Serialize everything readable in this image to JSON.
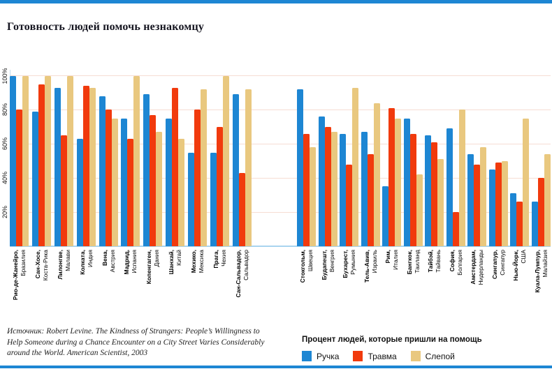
{
  "title": "Готовность людей помочь незнакомцу",
  "accent_color": "#1d86d3",
  "source": {
    "text": "Источник: Robert Levine. The Kindness of Strangers: People’s Willingness to\nHelp Someone during a Chance Encounter on a City Street Varies Considerably\naround the World. American Scientist, 2003"
  },
  "legend": {
    "title": "Процент людей, которые пришли на помощь",
    "items": [
      {
        "label": "Ручка",
        "color": "#1d86d3"
      },
      {
        "label": "Травма",
        "color": "#f13a0d"
      },
      {
        "label": "Слепой",
        "color": "#e9c87f"
      }
    ]
  },
  "chart_data": {
    "type": "bar",
    "title": "Готовность людей помочь незнакомцу",
    "ylabel": "Процент людей, которые пришли на помощь",
    "ylim": [
      0,
      105
    ],
    "yticks": [
      {
        "label": "20%",
        "value": 20
      },
      {
        "label": "40%",
        "value": 40
      },
      {
        "label": "60%",
        "value": 60
      },
      {
        "label": "80%",
        "value": 80
      },
      {
        "label": "100%",
        "value": 100
      }
    ],
    "grid": true,
    "legend_position": "bottom-right",
    "series_names": [
      "Ручка",
      "Травма",
      "Слепой"
    ],
    "clusters": [
      {
        "name": "left",
        "cities": [
          {
            "city": "Рио-де-Жанейро,",
            "country": "Бразилия",
            "values": [
              100,
              80,
              100
            ]
          },
          {
            "city": "Сан-Хосе,",
            "country": "Коста-Рика",
            "values": [
              79,
              95,
              100
            ]
          },
          {
            "city": "Лилонгве,",
            "country": "Малави",
            "values": [
              93,
              65,
              100
            ]
          },
          {
            "city": "Колката,",
            "country": "Индия",
            "values": [
              63,
              94,
              93
            ]
          },
          {
            "city": "Вена,",
            "country": "Австрия",
            "values": [
              88,
              80,
              75
            ]
          },
          {
            "city": "Мадрид,",
            "country": "Испания",
            "values": [
              75,
              63,
              100
            ]
          },
          {
            "city": "Копенгаген,",
            "country": "Дания",
            "values": [
              89,
              77,
              67
            ]
          },
          {
            "city": "Шанхай,",
            "country": "Китай",
            "values": [
              75,
              93,
              63
            ]
          },
          {
            "city": "Мехико,",
            "country": "Мексика",
            "values": [
              55,
              80,
              92
            ]
          },
          {
            "city": "Прага,",
            "country": "Чехия",
            "values": [
              55,
              70,
              100
            ]
          },
          {
            "city": "Сан-Сальвадор,",
            "country": "Сальвадор",
            "values": [
              89,
              43,
              92
            ]
          }
        ]
      },
      {
        "name": "right",
        "cities": [
          {
            "city": "Стокгольм,",
            "country": "Швеция",
            "values": [
              92,
              66,
              58
            ]
          },
          {
            "city": "Будапешт,",
            "country": "Венгрия",
            "values": [
              76,
              70,
              67
            ]
          },
          {
            "city": "Бухарест,",
            "country": "Румыния",
            "values": [
              66,
              48,
              93
            ]
          },
          {
            "city": "Тель-Авив,",
            "country": "Израиль",
            "values": [
              67,
              54,
              84
            ]
          },
          {
            "city": "Рим,",
            "country": "Италия",
            "values": [
              35,
              81,
              75
            ]
          },
          {
            "city": "Бангкок,",
            "country": "Таиланд",
            "values": [
              75,
              66,
              42
            ]
          },
          {
            "city": "Тайбэй,",
            "country": "Тайвань",
            "values": [
              65,
              61,
              51
            ]
          },
          {
            "city": "София,",
            "country": "Болгария",
            "values": [
              69,
              20,
              80
            ]
          },
          {
            "city": "Амстердам,",
            "country": "Нидерланды",
            "values": [
              54,
              48,
              58
            ]
          },
          {
            "city": "Сингапур,",
            "country": "Сингапур",
            "values": [
              45,
              49,
              50
            ]
          },
          {
            "city": "Нью-Йорк,",
            "country": "США",
            "values": [
              31,
              26,
              75
            ]
          },
          {
            "city": "Куала-Лумпур,",
            "country": "Малайзия",
            "values": [
              26,
              40,
              54
            ]
          }
        ]
      }
    ]
  }
}
